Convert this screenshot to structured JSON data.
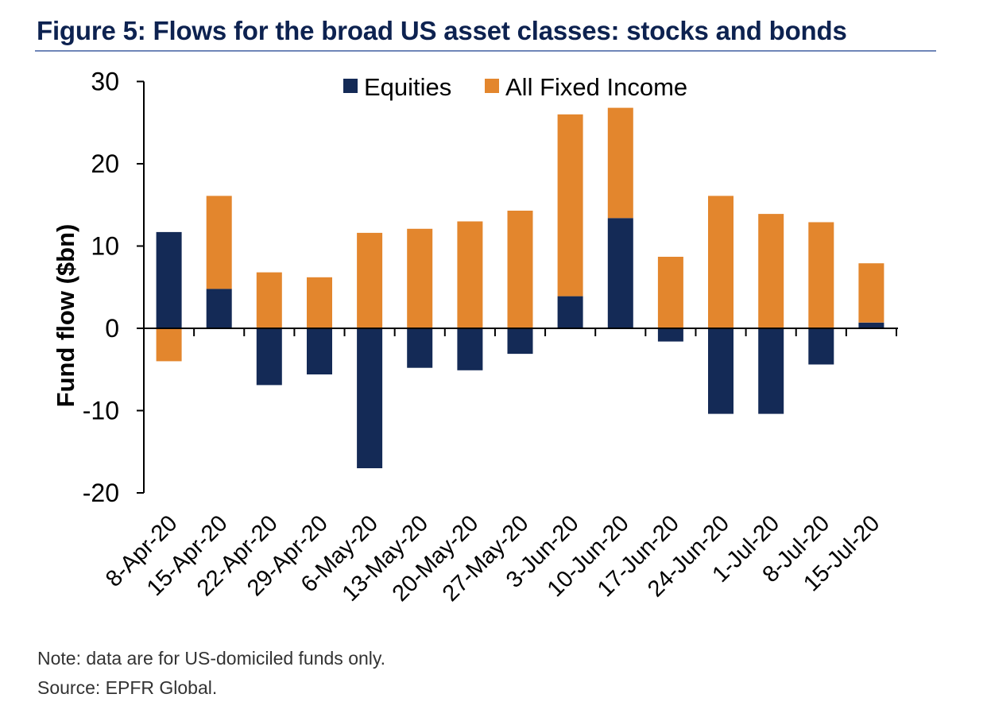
{
  "figure": {
    "title": "Figure 5: Flows for the broad US asset classes: stocks and bonds",
    "note": "Note: data are for US-domiciled funds only.",
    "source": "Source: EPFR Global."
  },
  "colors": {
    "equities": "#142a56",
    "fixed_income": "#e3862d",
    "title": "#0d2250",
    "rule": "#6f86b8",
    "axis": "#000000"
  },
  "chart_data": {
    "type": "bar",
    "stacked": true,
    "title": "",
    "xlabel": "",
    "ylabel": "Fund flow ($bn)",
    "ylim": [
      -20,
      30
    ],
    "yticks": [
      30,
      20,
      10,
      0,
      -10,
      -20
    ],
    "legend_position": "top-center",
    "categories": [
      "8-Apr-20",
      "15-Apr-20",
      "22-Apr-20",
      "29-Apr-20",
      "6-May-20",
      "13-May-20",
      "20-May-20",
      "27-May-20",
      "3-Jun-20",
      "10-Jun-20",
      "17-Jun-20",
      "24-Jun-20",
      "1-Jul-20",
      "8-Jul-20",
      "15-Jul-20"
    ],
    "series": [
      {
        "name": "Equities",
        "values": [
          11.7,
          4.8,
          -6.9,
          -5.6,
          -17.0,
          -4.8,
          -5.1,
          -3.1,
          3.9,
          13.4,
          -1.6,
          -10.4,
          -10.4,
          -4.4,
          0.7
        ]
      },
      {
        "name": "All Fixed Income",
        "values": [
          -4.0,
          11.3,
          6.8,
          6.2,
          11.6,
          12.1,
          13.0,
          14.3,
          22.1,
          13.4,
          8.7,
          16.1,
          13.9,
          12.9,
          7.2
        ]
      }
    ]
  }
}
